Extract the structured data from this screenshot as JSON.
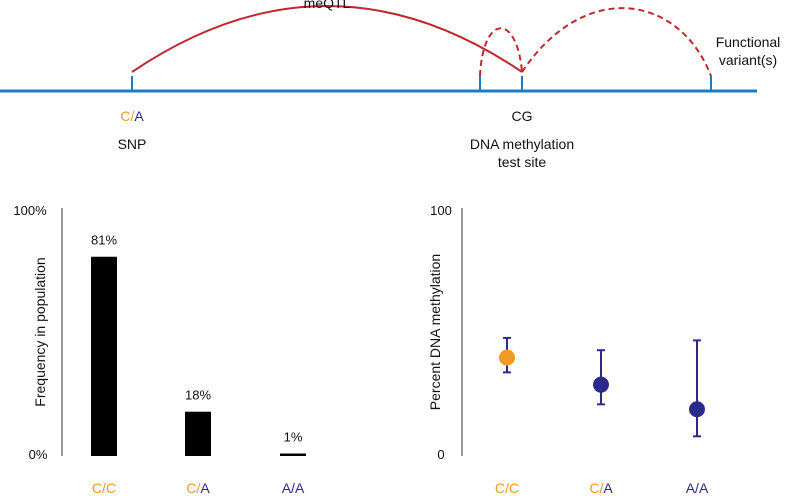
{
  "colors": {
    "allele_c": "#f39a24",
    "allele_a": "#2b2a8c",
    "track": "#1b7cc4",
    "arc": "#c1272d",
    "bar": "#000000",
    "axis": "#999999",
    "text": "#111111"
  },
  "diagram": {
    "meqtl_label": "meQTL",
    "functional_label_line1": "Functional",
    "functional_label_line2": "variant(s)",
    "snp_allele_c": "C",
    "snp_allele_sep": "/",
    "snp_allele_a": "A",
    "snp_label": "SNP",
    "cg_label": "CG",
    "test_site_line1": "DNA methylation",
    "test_site_line2": "test site"
  },
  "chart_data": [
    {
      "type": "bar",
      "ylabel": "Frequency in population",
      "ytick_top": "100%",
      "ytick_bottom": "0%",
      "ylim": [
        0,
        100
      ],
      "categories": [
        {
          "first": "C",
          "sep": "/",
          "second": "C"
        },
        {
          "first": "C",
          "sep": "/",
          "second": "A"
        },
        {
          "first": "A",
          "sep": "/",
          "second": "A"
        }
      ],
      "values": [
        81,
        18,
        1
      ],
      "value_labels": [
        "81%",
        "18%",
        "1%"
      ]
    },
    {
      "type": "scatter",
      "ylabel": "Percent DNA methylation",
      "ytick_top": "100",
      "ytick_bottom": "0",
      "ylim": [
        0,
        100
      ],
      "categories": [
        {
          "first": "C",
          "sep": "/",
          "second": "C"
        },
        {
          "first": "C",
          "sep": "/",
          "second": "A"
        },
        {
          "first": "A",
          "sep": "/",
          "second": "A"
        }
      ],
      "means": [
        40,
        29,
        19
      ],
      "error_low": [
        34,
        21,
        8
      ],
      "error_high": [
        48,
        43,
        47
      ],
      "point_colors": [
        "#f39a24",
        "#2b2a8c",
        "#2b2a8c"
      ]
    }
  ]
}
